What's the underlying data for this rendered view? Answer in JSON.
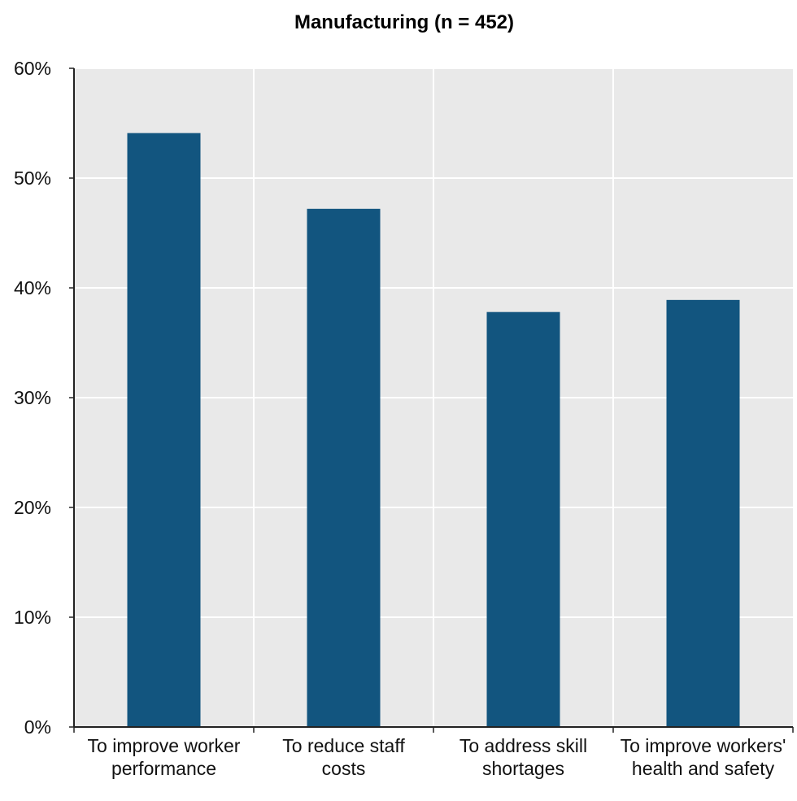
{
  "chart_data": {
    "type": "bar",
    "title": "Manufacturing (n = 452)",
    "categories": [
      [
        "To improve worker",
        "performance"
      ],
      [
        "To reduce staff",
        "costs"
      ],
      [
        "To address skill",
        "shortages"
      ],
      [
        "To improve workers'",
        "health and safety"
      ]
    ],
    "values": [
      54.1,
      47.2,
      37.8,
      38.9
    ],
    "ylim": [
      0,
      60
    ],
    "yticks": [
      "0%",
      "10%",
      "20%",
      "30%",
      "40%",
      "50%",
      "60%"
    ],
    "grid": true,
    "bar_color": "#12557f",
    "plot_background": "#e9e9e9"
  }
}
